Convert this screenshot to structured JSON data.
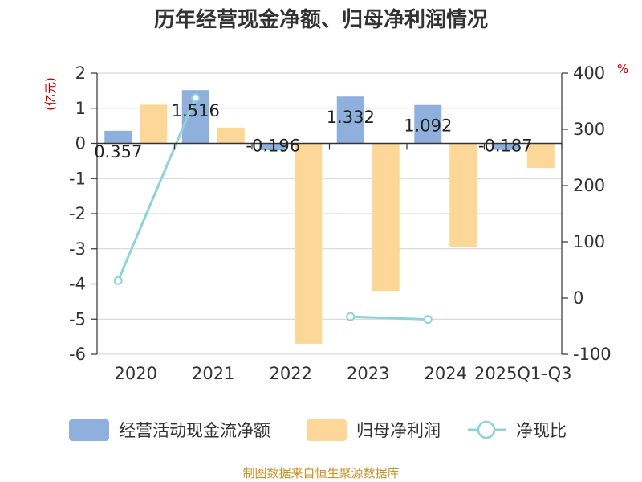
{
  "chart_data": {
    "type": "bar",
    "title": "历年经营现金净额、归母净利润情况",
    "categories": [
      "2020",
      "2021",
      "2022",
      "2023",
      "2024",
      "2025Q1-Q3"
    ],
    "y_left": {
      "unit": "(亿元)",
      "ylim": [
        -6,
        2
      ],
      "ticks": [
        "2",
        "1",
        "0",
        "-1",
        "-2",
        "-3",
        "-4",
        "-5",
        "-6"
      ]
    },
    "y_right": {
      "unit": "%",
      "ylim": [
        -100,
        400
      ],
      "ticks": [
        "400",
        "300",
        "200",
        "100",
        "0",
        "-100"
      ]
    },
    "series": [
      {
        "name": "经营活动现金流净额",
        "type": "bar",
        "axis": "left",
        "color": "#8fb0dc",
        "values": [
          0.357,
          1.516,
          -0.196,
          1.332,
          1.092,
          -0.187
        ],
        "labels": [
          "0.357",
          "1.516",
          "-0.196",
          "1.332",
          "1.092",
          "-0.187"
        ]
      },
      {
        "name": "归母净利润",
        "type": "bar",
        "axis": "left",
        "color": "#fdd797",
        "values": [
          1.1,
          0.45,
          -5.7,
          -4.2,
          -2.95,
          -0.7
        ]
      },
      {
        "name": "净现比",
        "type": "line",
        "axis": "right",
        "color": "#8fd3d8",
        "values": [
          31,
          356,
          null,
          -33,
          -38,
          null
        ]
      }
    ],
    "grid": true,
    "legend_position": "bottom"
  },
  "source": "制图数据来自恒生聚源数据库"
}
